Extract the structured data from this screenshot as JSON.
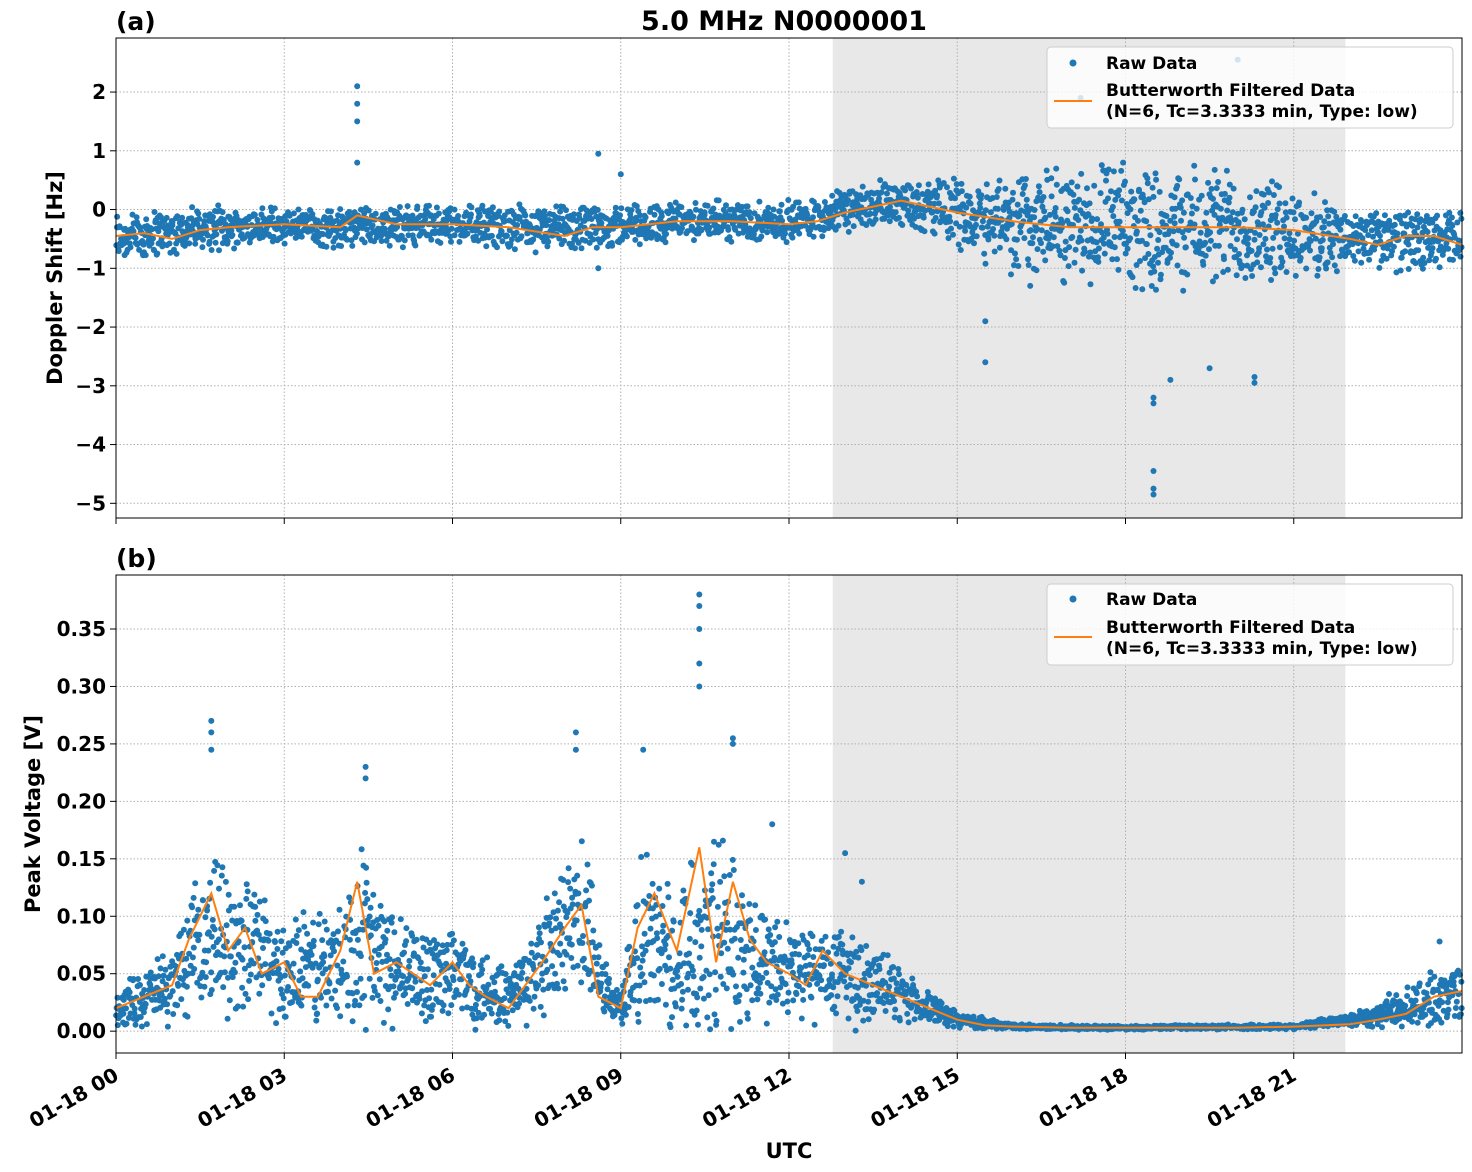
{
  "figure": {
    "title": "5.0 MHz N0000001",
    "xlabel": "UTC",
    "x_ticks": [
      "01-18 00",
      "01-18 03",
      "01-18 06",
      "01-18 09",
      "01-18 12",
      "01-18 15",
      "01-18 18",
      "01-18 21"
    ],
    "colors": {
      "raw": "#1f77b4",
      "filtered": "#ff7f0e",
      "shade": "#e8e8e8",
      "grid": "#b0b0b0"
    }
  },
  "chart_data": [
    {
      "type": "scatter",
      "panel_label": "(a)",
      "ylabel": "Doppler Shift [Hz]",
      "xlim": [
        0,
        24
      ],
      "ylim": [
        -5.25,
        2.92
      ],
      "y_ticks": [
        2,
        1,
        0,
        -1,
        -2,
        -3,
        -4,
        -5
      ],
      "y_tick_labels": [
        "2",
        "1",
        "0",
        "−1",
        "−2",
        "−3",
        "−4",
        "−5"
      ],
      "shaded_span": [
        12.78,
        21.92
      ],
      "legend": {
        "location": "top-right",
        "raw_label": "Raw Data",
        "filtered_label_line1": "Butterworth Filtered Data",
        "filtered_label_line2": "(N=6, Tc=3.3333 min, Type: low)"
      },
      "filtered_series": {
        "name": "Butterworth Filtered Data",
        "x": [
          0,
          0.5,
          1,
          1.5,
          2,
          3,
          4,
          4.3,
          5,
          6,
          7,
          8,
          8.5,
          9,
          10,
          11,
          12,
          12.5,
          13,
          13.5,
          14,
          14.5,
          15,
          16,
          17,
          18,
          19,
          20,
          21,
          22,
          22.5,
          23,
          23.5,
          24
        ],
        "y": [
          -0.45,
          -0.4,
          -0.5,
          -0.35,
          -0.3,
          -0.25,
          -0.3,
          -0.1,
          -0.25,
          -0.25,
          -0.3,
          -0.45,
          -0.3,
          -0.3,
          -0.2,
          -0.2,
          -0.25,
          -0.2,
          -0.05,
          0.05,
          0.15,
          0.05,
          -0.05,
          -0.2,
          -0.3,
          -0.3,
          -0.3,
          -0.3,
          -0.35,
          -0.5,
          -0.6,
          -0.45,
          -0.45,
          -0.6
        ]
      },
      "raw_series": {
        "name": "Raw Data",
        "baseline_x": [
          0,
          2,
          4,
          6,
          8,
          10,
          12,
          13,
          14,
          15,
          16,
          18,
          20,
          22,
          24
        ],
        "baseline_y": [
          -0.45,
          -0.3,
          -0.3,
          -0.25,
          -0.35,
          -0.2,
          -0.2,
          0.0,
          0.15,
          -0.05,
          -0.2,
          -0.3,
          -0.3,
          -0.5,
          -0.55
        ],
        "spread_y": [
          0.4,
          0.3,
          0.3,
          0.3,
          0.35,
          0.3,
          0.3,
          0.35,
          0.35,
          0.5,
          0.8,
          0.9,
          0.9,
          0.45,
          0.45
        ],
        "outliers_x": [
          4.3,
          4.3,
          4.3,
          4.3,
          8.6,
          8.6,
          9.0,
          15.5,
          15.5,
          16.3,
          17.2,
          18.5,
          18.5,
          18.5,
          18.5,
          18.5,
          18.8,
          19.5,
          20.0,
          20.3,
          20.3,
          19.8
        ],
        "outliers_y": [
          2.1,
          1.8,
          1.5,
          0.8,
          0.95,
          -1.0,
          0.6,
          -1.9,
          -2.6,
          -1.3,
          1.9,
          -3.2,
          -3.3,
          -4.45,
          -4.75,
          -4.85,
          -2.9,
          -2.7,
          2.55,
          -2.85,
          -2.95,
          1.7
        ]
      }
    },
    {
      "type": "scatter",
      "panel_label": "(b)",
      "ylabel": "Peak Voltage [V]",
      "xlim": [
        0,
        24
      ],
      "ylim": [
        -0.019,
        0.397
      ],
      "y_ticks": [
        0.35,
        0.3,
        0.25,
        0.2,
        0.15,
        0.1,
        0.05,
        0.0
      ],
      "y_tick_labels": [
        "0.35",
        "0.30",
        "0.25",
        "0.20",
        "0.15",
        "0.10",
        "0.05",
        "0.00"
      ],
      "shaded_span": [
        12.78,
        21.92
      ],
      "legend": {
        "location": "top-right",
        "raw_label": "Raw Data",
        "filtered_label_line1": "Butterworth Filtered Data",
        "filtered_label_line2": "(N=6, Tc=3.3333 min, Type: low)"
      },
      "filtered_series": {
        "name": "Butterworth Filtered Data",
        "x": [
          0,
          0.5,
          1,
          1.3,
          1.7,
          2,
          2.3,
          2.6,
          3,
          3.3,
          3.6,
          4,
          4.3,
          4.6,
          5,
          5.3,
          5.6,
          6,
          6.3,
          6.6,
          7,
          7.3,
          7.6,
          8,
          8.3,
          8.6,
          9,
          9.3,
          9.6,
          10,
          10.4,
          10.7,
          11,
          11.3,
          11.6,
          12,
          12.3,
          12.6,
          13,
          13.5,
          14,
          14.5,
          15,
          15.5,
          16,
          17,
          18,
          19,
          20,
          21,
          22,
          22.5,
          23,
          23.5,
          24
        ],
        "y": [
          0.02,
          0.03,
          0.04,
          0.08,
          0.12,
          0.07,
          0.09,
          0.05,
          0.06,
          0.03,
          0.03,
          0.07,
          0.13,
          0.05,
          0.06,
          0.05,
          0.04,
          0.06,
          0.04,
          0.03,
          0.02,
          0.04,
          0.06,
          0.09,
          0.11,
          0.03,
          0.02,
          0.09,
          0.12,
          0.07,
          0.16,
          0.06,
          0.13,
          0.08,
          0.06,
          0.05,
          0.04,
          0.07,
          0.05,
          0.04,
          0.03,
          0.02,
          0.01,
          0.005,
          0.004,
          0.003,
          0.003,
          0.003,
          0.003,
          0.004,
          0.006,
          0.01,
          0.015,
          0.03,
          0.035
        ]
      },
      "raw_series": {
        "name": "Raw Data",
        "baseline_x": [
          0,
          1,
          1.7,
          2.5,
          3,
          4,
          4.4,
          5,
          6,
          7,
          7.5,
          8.3,
          8.8,
          9,
          9.4,
          10,
          10.4,
          11,
          11.5,
          12,
          13,
          14,
          14.5,
          15,
          16,
          18,
          21,
          22,
          23,
          24
        ],
        "baseline_y": [
          0.02,
          0.04,
          0.09,
          0.07,
          0.05,
          0.06,
          0.08,
          0.05,
          0.05,
          0.03,
          0.05,
          0.1,
          0.03,
          0.02,
          0.08,
          0.06,
          0.09,
          0.08,
          0.06,
          0.05,
          0.05,
          0.03,
          0.02,
          0.01,
          0.004,
          0.003,
          0.004,
          0.01,
          0.02,
          0.035
        ],
        "spread_y": [
          0.015,
          0.03,
          0.06,
          0.05,
          0.04,
          0.05,
          0.07,
          0.04,
          0.04,
          0.025,
          0.04,
          0.07,
          0.02,
          0.015,
          0.07,
          0.05,
          0.08,
          0.07,
          0.05,
          0.04,
          0.04,
          0.02,
          0.012,
          0.006,
          0.002,
          0.0015,
          0.002,
          0.005,
          0.015,
          0.025
        ],
        "outliers_x": [
          1.7,
          1.7,
          1.7,
          4.45,
          4.45,
          8.2,
          8.2,
          9.4,
          10.4,
          10.4,
          10.4,
          10.4,
          10.4,
          11.0,
          11.0,
          11.7,
          13.0,
          13.3,
          23.6
        ],
        "outliers_y": [
          0.27,
          0.26,
          0.245,
          0.23,
          0.22,
          0.26,
          0.245,
          0.245,
          0.38,
          0.37,
          0.35,
          0.32,
          0.3,
          0.255,
          0.25,
          0.18,
          0.155,
          0.13,
          0.078
        ]
      }
    }
  ]
}
